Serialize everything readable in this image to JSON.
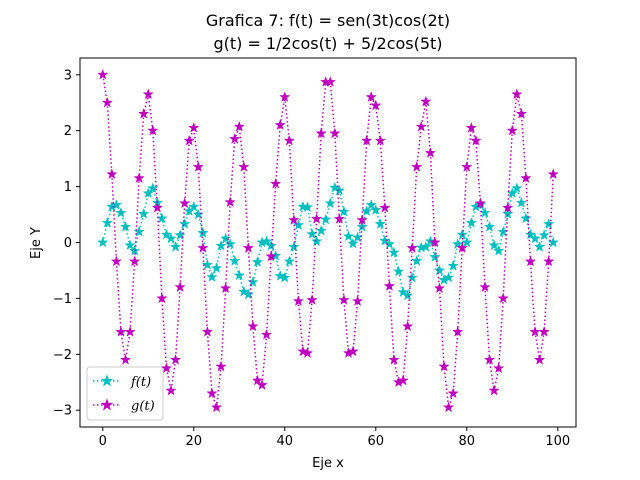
{
  "chart_data": {
    "type": "line",
    "title_line1": "Grafica 7: f(t) = sen(3t)cos(2t)",
    "title_line2": "g(t) = 1/2cos(t) + 5/2cos(5t)",
    "xlabel": "Eje x",
    "ylabel": "Eje Y",
    "xlim": [
      -5,
      104
    ],
    "ylim": [
      -3.3,
      3.3
    ],
    "x_ticks": [
      0,
      20,
      40,
      60,
      80,
      100
    ],
    "y_ticks": [
      -3,
      -2,
      -1,
      0,
      1,
      2,
      3
    ],
    "x": [
      0,
      1,
      2,
      3,
      4,
      5,
      6,
      7,
      8,
      9,
      10,
      11,
      12,
      13,
      14,
      15,
      16,
      17,
      18,
      19,
      20,
      21,
      22,
      23,
      24,
      25,
      26,
      27,
      28,
      29,
      30,
      31,
      32,
      33,
      34,
      35,
      36,
      37,
      38,
      39,
      40,
      41,
      42,
      43,
      44,
      45,
      46,
      47,
      48,
      49,
      50,
      51,
      52,
      53,
      54,
      55,
      56,
      57,
      58,
      59,
      60,
      61,
      62,
      63,
      64,
      65,
      66,
      67,
      68,
      69,
      70,
      71,
      72,
      73,
      74,
      75,
      76,
      77,
      78,
      79,
      80,
      81,
      82,
      83,
      84,
      85,
      86,
      87,
      88,
      89,
      90,
      91,
      92,
      93,
      94,
      95,
      96,
      97,
      98,
      99
    ],
    "series": [
      {
        "name": "f(t)",
        "color": "#00bfbf",
        "values": [
          0.0,
          0.35,
          0.64,
          0.67,
          0.53,
          0.28,
          -0.05,
          -0.15,
          0.19,
          0.51,
          0.88,
          0.97,
          0.71,
          0.43,
          0.14,
          0.07,
          -0.08,
          0.13,
          0.33,
          0.56,
          0.64,
          0.5,
          0.17,
          -0.4,
          -0.62,
          -0.46,
          -0.06,
          0.07,
          -0.03,
          -0.33,
          -0.59,
          -0.88,
          -0.93,
          -0.71,
          -0.35,
          0.0,
          0.02,
          -0.06,
          -0.24,
          -0.6,
          -0.63,
          -0.34,
          -0.08,
          0.31,
          0.64,
          0.63,
          0.15,
          0.02,
          0.21,
          0.41,
          0.7,
          0.98,
          0.93,
          0.55,
          0.11,
          -0.02,
          0.09,
          0.28,
          0.56,
          0.67,
          0.58,
          0.33,
          0.03,
          -0.03,
          -0.18,
          -0.52,
          -0.89,
          -0.95,
          -0.63,
          -0.33,
          -0.09,
          -0.08,
          0.02,
          -0.26,
          -0.5,
          -0.67,
          -0.63,
          -0.42,
          -0.03,
          0.14,
          0.0,
          0.35,
          0.64,
          0.67,
          0.53,
          0.28,
          -0.05,
          -0.15,
          0.19,
          0.51,
          0.88,
          0.97,
          0.71,
          0.43,
          0.14,
          0.07,
          -0.08,
          0.13,
          0.33,
          0.0
        ]
      },
      {
        "name": "g(t)",
        "color": "#bf00bf",
        "values": [
          3.0,
          2.5,
          1.22,
          -0.34,
          -1.6,
          -2.1,
          -1.6,
          -0.34,
          1.15,
          2.3,
          2.65,
          2.0,
          0.62,
          -1.0,
          -2.25,
          -2.65,
          -2.1,
          -0.8,
          0.7,
          1.82,
          2.05,
          1.35,
          -0.1,
          -1.6,
          -2.7,
          -2.95,
          -2.22,
          -0.82,
          0.72,
          1.85,
          2.07,
          1.35,
          -0.1,
          -1.5,
          -2.47,
          -2.55,
          -1.65,
          -0.25,
          1.05,
          2.1,
          2.6,
          1.82,
          0.4,
          -1.05,
          -1.95,
          -1.98,
          -1.03,
          0.42,
          1.95,
          2.87,
          2.87,
          1.95,
          0.42,
          -1.03,
          -1.98,
          -1.95,
          -1.05,
          0.4,
          1.82,
          2.6,
          2.45,
          1.82,
          0.62,
          -0.78,
          -2.1,
          -2.5,
          -2.47,
          -1.5,
          -0.1,
          1.35,
          2.07,
          2.52,
          1.6,
          0.0,
          -0.82,
          -2.22,
          -2.95,
          -2.7,
          -1.6,
          -0.1,
          1.35,
          2.05,
          1.82,
          0.7,
          -0.8,
          -2.1,
          -2.65,
          -2.25,
          -1.0,
          0.62,
          2.0,
          2.65,
          2.3,
          1.15,
          -0.34,
          -1.6,
          -2.1,
          -1.6,
          -0.34,
          1.22
        ]
      }
    ],
    "legend_position": "lower-left",
    "grid": false
  }
}
